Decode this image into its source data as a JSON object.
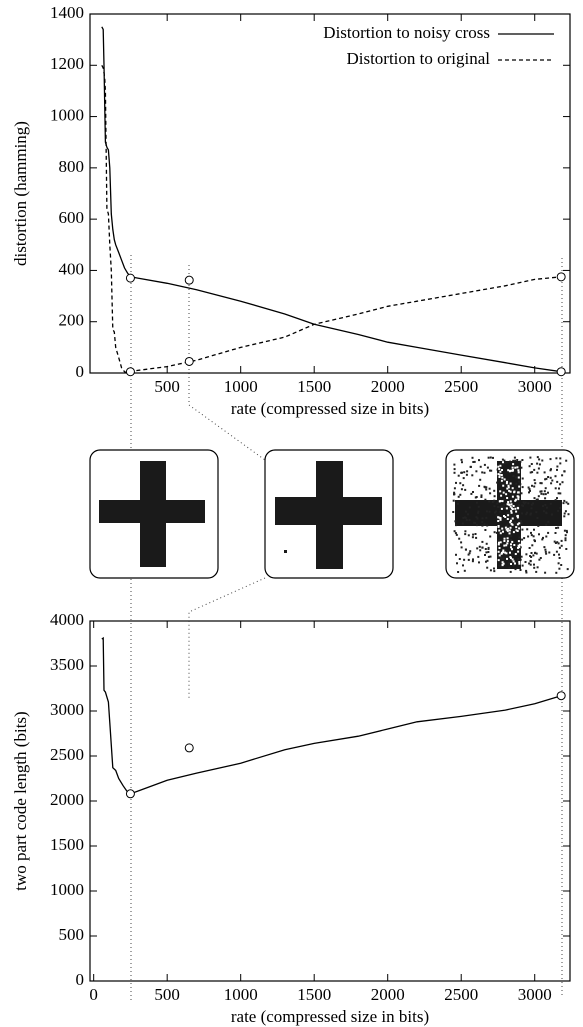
{
  "chart_data": [
    {
      "type": "line",
      "ylabel": "distortion (hamming)",
      "xlabel": "rate (compressed size in bits)",
      "x": [
        55,
        65,
        70,
        75,
        80,
        90,
        100,
        110,
        120,
        130,
        140,
        150,
        170,
        190,
        210,
        230,
        250,
        300,
        500,
        700,
        1000,
        1300,
        1500,
        1800,
        2000,
        2200,
        2500,
        2800,
        3000,
        3180
      ],
      "series": [
        {
          "name": "Distortion to noisy cross",
          "style": "solid",
          "color": "#000000",
          "values": [
            1350,
            1340,
            1200,
            1050,
            900,
            880,
            870,
            800,
            620,
            560,
            520,
            500,
            470,
            440,
            410,
            390,
            375,
            370,
            350,
            325,
            280,
            230,
            190,
            150,
            120,
            100,
            70,
            40,
            20,
            5
          ]
        },
        {
          "name": "Distortion to original",
          "style": "dashed",
          "color": "#000000",
          "values": [
            1200,
            1190,
            1170,
            1150,
            1100,
            640,
            620,
            500,
            400,
            170,
            160,
            100,
            60,
            20,
            5,
            0,
            5,
            10,
            25,
            50,
            100,
            140,
            190,
            230,
            260,
            280,
            310,
            340,
            365,
            375
          ]
        }
      ],
      "points": {
        "x": [
          250,
          250,
          650,
          650,
          3180,
          3180
        ],
        "values": [
          370,
          5,
          362,
          45,
          375,
          5
        ]
      },
      "xlim": [
        -25,
        3240
      ],
      "ylim": [
        0,
        1400
      ],
      "xticks": [
        500,
        1000,
        1500,
        2000,
        2500,
        3000
      ],
      "yticks": [
        0,
        200,
        400,
        600,
        800,
        1000,
        1200,
        1400
      ],
      "legend": "upper right"
    },
    {
      "type": "line",
      "ylabel": "two part code length (bits)",
      "xlabel": "rate (compressed size in bits)",
      "x": [
        55,
        65,
        70,
        80,
        100,
        110,
        130,
        150,
        170,
        200,
        230,
        250,
        300,
        500,
        700,
        1000,
        1300,
        1500,
        1800,
        2000,
        2200,
        2500,
        2800,
        3000,
        3180
      ],
      "series": [
        {
          "style": "solid",
          "color": "#000000",
          "values": [
            3800,
            3810,
            3230,
            3210,
            3100,
            2870,
            2370,
            2340,
            2250,
            2170,
            2100,
            2080,
            2110,
            2230,
            2310,
            2420,
            2570,
            2640,
            2720,
            2800,
            2880,
            2940,
            3010,
            3080,
            3170
          ]
        }
      ],
      "points": {
        "x": [
          250,
          650,
          3180
        ],
        "values": [
          2080,
          2590,
          3170
        ]
      },
      "xlim": [
        -25,
        3240
      ],
      "ylim": [
        0,
        4000
      ],
      "xticks": [
        0,
        500,
        1000,
        1500,
        2000,
        2500,
        3000
      ],
      "yticks": [
        0,
        500,
        1000,
        1500,
        2000,
        2500,
        3000,
        3500,
        4000
      ]
    }
  ]
}
